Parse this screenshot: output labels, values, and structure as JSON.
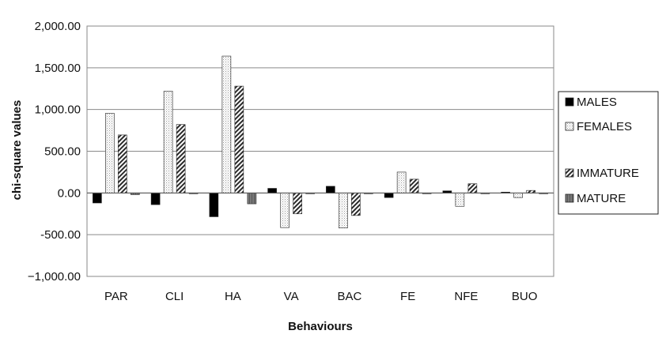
{
  "chart_data": {
    "type": "bar",
    "title": "",
    "xlabel": "Behaviours",
    "ylabel": "chi-square values",
    "categories": [
      "PAR",
      "CLI",
      "HA",
      "VA",
      "BAC",
      "FE",
      "NFE",
      "BUO"
    ],
    "ylim": [
      -1000,
      2000
    ],
    "yticks": [
      2000,
      1500,
      1000,
      500,
      0,
      -500,
      -1000
    ],
    "ytick_labels": [
      "2,000.00",
      "1,500.00",
      "1,000.00",
      "500.00",
      "0.00",
      "-500.00",
      "−1,000.00"
    ],
    "grid": true,
    "legend_position": "right",
    "series": [
      {
        "name": "MALES",
        "values": [
          -120,
          -140,
          -285,
          55,
          80,
          -55,
          25,
          10
        ],
        "fill": "solid",
        "color": "#000000"
      },
      {
        "name": "FEMALES",
        "values": [
          955,
          1220,
          1640,
          -415,
          -420,
          250,
          -160,
          -55
        ],
        "fill": "dots",
        "color": "#f2f2f2"
      },
      {
        "name": "IMMATURE",
        "values": [
          695,
          820,
          1280,
          -250,
          -270,
          165,
          110,
          30
        ],
        "fill": "hatch",
        "color": "#333333"
      },
      {
        "name": "MATURE",
        "values": [
          -20,
          -5,
          -130,
          -5,
          -5,
          -5,
          -5,
          -5
        ],
        "fill": "grey",
        "color": "#808080"
      }
    ]
  }
}
